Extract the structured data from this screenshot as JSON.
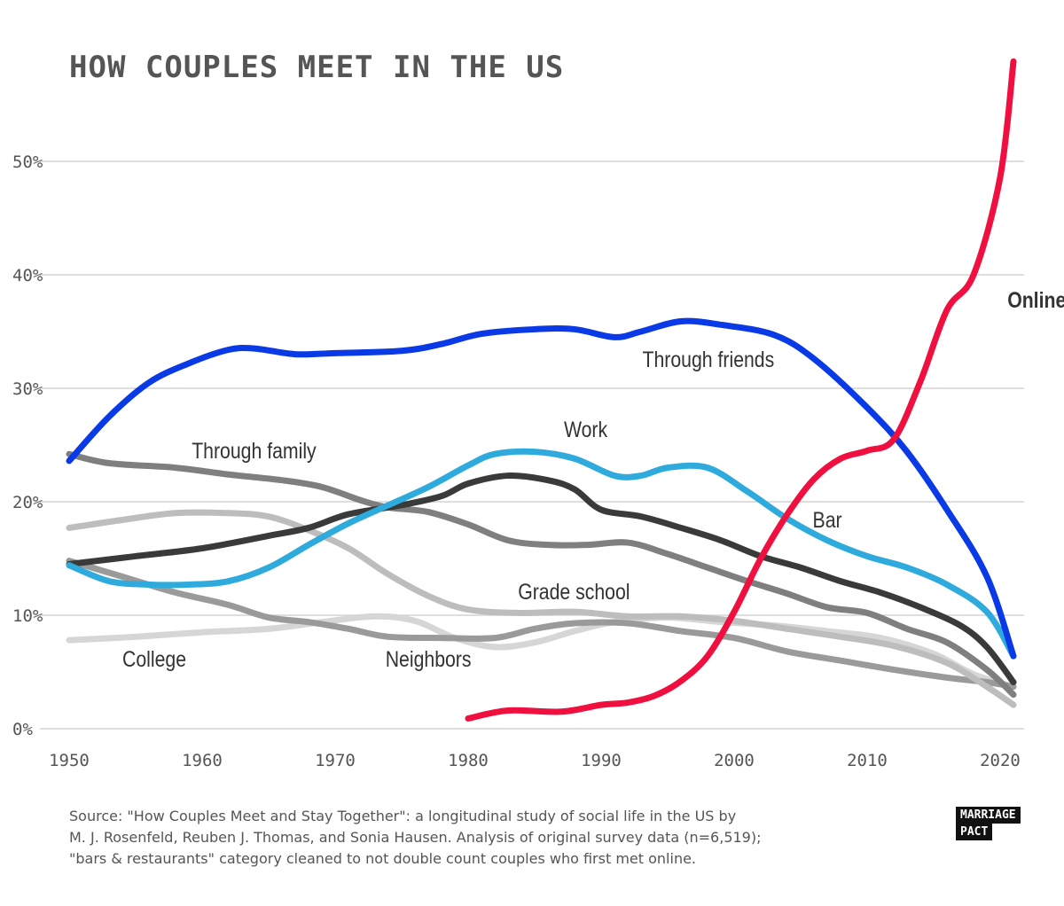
{
  "chart_data": {
    "type": "line",
    "title": "HOW COUPLES MEET IN THE US",
    "xlabel": "",
    "ylabel": "",
    "xlim": [
      1950,
      2021
    ],
    "ylim": [
      0,
      55
    ],
    "x_ticks": [
      1950,
      1960,
      1970,
      1980,
      1990,
      2000,
      2010,
      2020
    ],
    "x_tick_labels": [
      "1950",
      "1960",
      "1970",
      "1980",
      "1990",
      "2000",
      "2010",
      "2020"
    ],
    "y_ticks": [
      0,
      10,
      20,
      30,
      40,
      50
    ],
    "y_tick_labels": [
      "0%",
      "10%",
      "20%",
      "30%",
      "40%",
      "50%"
    ],
    "grid": "horizontal",
    "series": [
      {
        "name": "College",
        "color": "#d6d6d6",
        "x": [
          1950,
          1955,
          1960,
          1965,
          1969,
          1973,
          1976,
          1979,
          1982,
          1985,
          1988,
          1991,
          1995,
          1999,
          2003,
          2007,
          2011,
          2015,
          2018,
          2021
        ],
        "values": [
          7.8,
          8.1,
          8.5,
          8.8,
          9.4,
          9.9,
          9.5,
          8.0,
          7.2,
          7.6,
          8.6,
          9.4,
          9.8,
          9.4,
          9.1,
          8.6,
          8.0,
          6.6,
          4.8,
          3.7
        ]
      },
      {
        "name": "Neighbors",
        "color": "#9a9a9a",
        "x": [
          1950,
          1954,
          1958,
          1962,
          1965,
          1968,
          1971,
          1974,
          1978,
          1982,
          1985,
          1988,
          1992,
          1996,
          2000,
          2004,
          2008,
          2012,
          2016,
          2019,
          2021
        ],
        "values": [
          14.8,
          13.4,
          12.0,
          10.9,
          9.8,
          9.4,
          8.8,
          8.1,
          8.0,
          8.0,
          8.8,
          9.3,
          9.3,
          8.6,
          8.0,
          6.8,
          6.0,
          5.2,
          4.5,
          4.1,
          3.7
        ]
      },
      {
        "name": "Grade school",
        "color": "#bdbdbd",
        "x": [
          1950,
          1954,
          1958,
          1962,
          1965,
          1968,
          1971,
          1974,
          1977,
          1980,
          1984,
          1988,
          1992,
          1996,
          2000,
          2004,
          2008,
          2012,
          2016,
          2019,
          2021
        ],
        "values": [
          17.7,
          18.4,
          19.0,
          19.0,
          18.7,
          17.5,
          15.9,
          13.6,
          11.7,
          10.5,
          10.2,
          10.3,
          9.9,
          9.9,
          9.5,
          8.8,
          8.1,
          7.3,
          5.8,
          3.7,
          2.1
        ]
      },
      {
        "name": "Through family",
        "color": "#7f7f7f",
        "x": [
          1950,
          1953,
          1958,
          1962,
          1966,
          1969,
          1972,
          1974,
          1977,
          1980,
          1983,
          1986,
          1989,
          1992,
          1995,
          1998,
          2001,
          2004,
          2007,
          2010,
          2013,
          2016,
          2019,
          2021
        ],
        "values": [
          24.2,
          23.4,
          23.0,
          22.4,
          21.9,
          21.3,
          20.1,
          19.5,
          19.1,
          18.0,
          16.6,
          16.2,
          16.2,
          16.4,
          15.4,
          14.2,
          13.0,
          11.9,
          10.7,
          10.2,
          8.8,
          7.6,
          5.2,
          3.0
        ]
      },
      {
        "name": "Bar",
        "color": "#3a3a3a",
        "x": [
          1950,
          1955,
          1960,
          1965,
          1968,
          1971,
          1975,
          1978,
          1980,
          1983,
          1986,
          1988,
          1990,
          1993,
          1996,
          1999,
          2002,
          2005,
          2008,
          2011,
          2014,
          2017,
          2019,
          2021
        ],
        "values": [
          14.5,
          15.2,
          15.9,
          17.0,
          17.7,
          18.9,
          19.7,
          20.5,
          21.6,
          22.3,
          21.9,
          21.1,
          19.3,
          18.7,
          17.7,
          16.6,
          15.2,
          14.2,
          13.0,
          12.0,
          10.7,
          9.1,
          7.2,
          4.1
        ]
      },
      {
        "name": "Work",
        "color": "#2eaadc",
        "x": [
          1950,
          1953,
          1956,
          1959,
          1962,
          1965,
          1968,
          1971,
          1974,
          1977,
          1980,
          1982,
          1985,
          1988,
          1991,
          1993,
          1995,
          1998,
          2001,
          2004,
          2007,
          2010,
          2013,
          2016,
          2019,
          2021
        ],
        "values": [
          14.4,
          13.0,
          12.7,
          12.7,
          13.0,
          14.2,
          16.2,
          18.1,
          19.7,
          21.3,
          23.2,
          24.2,
          24.4,
          23.8,
          22.3,
          22.3,
          23.0,
          23.0,
          20.9,
          18.5,
          16.6,
          15.2,
          14.2,
          12.7,
          10.3,
          6.4
        ]
      },
      {
        "name": "Through friends",
        "color": "#0a3ae6",
        "x": [
          1950,
          1953,
          1956,
          1959,
          1962,
          1964,
          1967,
          1970,
          1975,
          1978,
          1981,
          1985,
          1988,
          1991,
          1993,
          1996,
          1999,
          2003,
          2006,
          2010,
          2013,
          2016,
          2019,
          2021
        ],
        "values": [
          23.6,
          27.5,
          30.5,
          32.2,
          33.4,
          33.5,
          33.0,
          33.1,
          33.3,
          33.9,
          34.8,
          35.2,
          35.2,
          34.5,
          35.0,
          35.9,
          35.6,
          34.7,
          32.6,
          28.3,
          24.4,
          19.3,
          13.4,
          6.4
        ]
      },
      {
        "name": "Online",
        "color": "#f0103f",
        "x": [
          1980,
          1983,
          1987,
          1990,
          1992,
          1994,
          1996,
          1998,
          2000,
          2002,
          2004,
          2006,
          2008,
          2010,
          2012,
          2014,
          2016,
          2018,
          2020,
          2021
        ],
        "values": [
          0.9,
          1.6,
          1.5,
          2.1,
          2.3,
          2.9,
          4.2,
          6.4,
          10.3,
          15.0,
          18.9,
          22.0,
          23.8,
          24.5,
          25.5,
          30.6,
          36.9,
          40.0,
          48.6,
          58.8
        ]
      }
    ]
  },
  "source_lines": [
    "Source: \"How Couples Meet and Stay Together\": a longitudinal study of social life in the US by",
    "M. J. Rosenfeld, Reuben J. Thomas, and Sonia Hausen. Analysis of original survey data (n=6,519);",
    "\"bars & restaurants\" category cleaned to not double count couples who first met online."
  ],
  "logo": {
    "line1": "MARRIAGE",
    "line2": "PACT"
  }
}
